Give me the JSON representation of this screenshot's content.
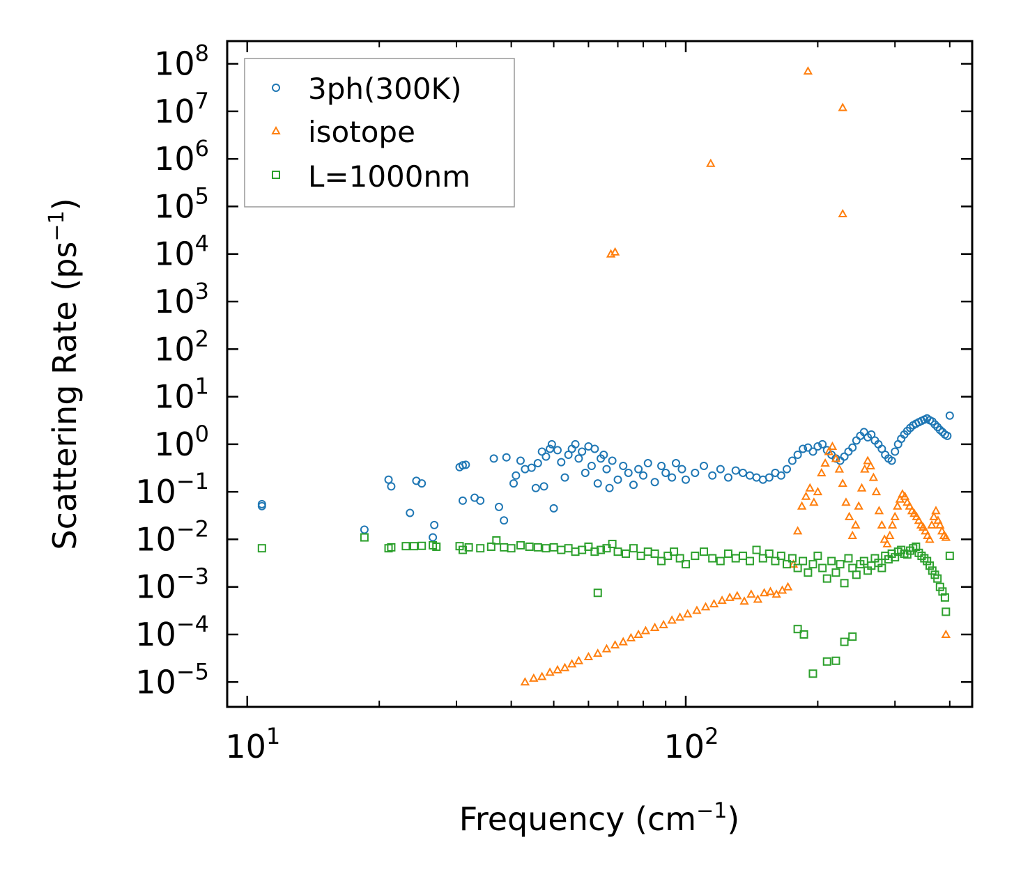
{
  "chart_data": {
    "type": "scatter",
    "title": "",
    "xlabel": "Frequency",
    "xlabel_unit_base": "cm",
    "xlabel_unit_exp": "−1",
    "ylabel": "Scattering Rate",
    "ylabel_unit_base": "ps",
    "ylabel_unit_exp": "−1",
    "xscale": "log",
    "yscale": "log",
    "xlim": [
      9,
      450
    ],
    "ylim": [
      3e-06,
      300000000.0
    ],
    "xticks": [
      {
        "value": 10,
        "base": "10",
        "exp": "1"
      },
      {
        "value": 100,
        "base": "10",
        "exp": "2"
      }
    ],
    "yticks": [
      {
        "value": 1e-05,
        "base": "10",
        "exp": "−5"
      },
      {
        "value": 0.0001,
        "base": "10",
        "exp": "−4"
      },
      {
        "value": 0.001,
        "base": "10",
        "exp": "−3"
      },
      {
        "value": 0.01,
        "base": "10",
        "exp": "−2"
      },
      {
        "value": 0.1,
        "base": "10",
        "exp": "−1"
      },
      {
        "value": 1,
        "base": "10",
        "exp": "0"
      },
      {
        "value": 10,
        "base": "10",
        "exp": "1"
      },
      {
        "value": 100,
        "base": "10",
        "exp": "2"
      },
      {
        "value": 1000,
        "base": "10",
        "exp": "3"
      },
      {
        "value": 10000,
        "base": "10",
        "exp": "4"
      },
      {
        "value": 100000,
        "base": "10",
        "exp": "5"
      },
      {
        "value": 1000000,
        "base": "10",
        "exp": "6"
      },
      {
        "value": 10000000,
        "base": "10",
        "exp": "7"
      },
      {
        "value": 100000000,
        "base": "10",
        "exp": "8"
      }
    ],
    "legend_position": "top-left",
    "series": [
      {
        "name": "3ph(300K)",
        "color": "#1f77b4",
        "marker": "circle",
        "x": [
          10.8,
          10.8,
          18.5,
          21.0,
          21.3,
          23.5,
          24.3,
          25.0,
          26.5,
          26.7,
          30.5,
          31.0,
          31.5,
          31.0,
          33.0,
          34.0,
          36.5,
          37.5,
          38.5,
          39.0,
          40.5,
          41.0,
          42.0,
          43.0,
          44.5,
          45.5,
          46.0,
          47.0,
          47.5,
          48.0,
          49.0,
          49.5,
          50.0,
          51.0,
          52.0,
          53.0,
          54.0,
          55.0,
          56.0,
          57.0,
          58.0,
          59.0,
          60.0,
          61.0,
          62.0,
          63.0,
          64.0,
          65.0,
          66.0,
          67.0,
          68.0,
          70.0,
          72.0,
          74.0,
          76.0,
          78.0,
          80.0,
          82.0,
          85.0,
          88.0,
          90.0,
          93.0,
          95.0,
          98.0,
          100.0,
          105.0,
          110.0,
          115.0,
          120.0,
          125.0,
          130.0,
          135.0,
          140.0,
          145.0,
          150.0,
          155.0,
          160.0,
          165.0,
          170.0,
          175.0,
          180.0,
          185.0,
          190.0,
          195.0,
          200.0,
          205.0,
          210.0,
          215.0,
          220.0,
          225.0,
          230.0,
          235.0,
          240.0,
          245.0,
          250.0,
          255.0,
          260.0,
          265.0,
          270.0,
          275.0,
          280.0,
          285.0,
          290.0,
          295.0,
          300.0,
          305.0,
          310.0,
          315.0,
          320.0,
          325.0,
          330.0,
          335.0,
          340.0,
          345.0,
          350.0,
          355.0,
          360.0,
          365.0,
          370.0,
          375.0,
          380.0,
          385.0,
          390.0,
          395.0,
          400.0
        ],
        "y": [
          0.05,
          0.055,
          0.016,
          0.18,
          0.13,
          0.036,
          0.17,
          0.15,
          0.011,
          0.02,
          0.33,
          0.065,
          0.37,
          0.36,
          0.075,
          0.065,
          0.5,
          0.048,
          0.025,
          0.53,
          0.15,
          0.22,
          0.45,
          0.3,
          0.32,
          0.12,
          0.4,
          0.7,
          0.13,
          0.55,
          0.8,
          1.0,
          0.045,
          0.75,
          0.42,
          0.2,
          0.6,
          0.8,
          1.0,
          0.5,
          0.7,
          0.25,
          0.9,
          0.35,
          0.8,
          0.15,
          0.5,
          0.6,
          0.3,
          0.12,
          0.45,
          0.18,
          0.35,
          0.25,
          0.14,
          0.3,
          0.22,
          0.4,
          0.16,
          0.35,
          0.25,
          0.2,
          0.4,
          0.3,
          0.18,
          0.25,
          0.35,
          0.22,
          0.3,
          0.2,
          0.28,
          0.25,
          0.22,
          0.2,
          0.18,
          0.2,
          0.25,
          0.22,
          0.3,
          0.45,
          0.6,
          0.8,
          0.85,
          0.7,
          0.9,
          1.0,
          0.75,
          0.6,
          0.5,
          0.45,
          0.55,
          0.7,
          0.85,
          1.2,
          1.5,
          1.8,
          1.4,
          1.6,
          1.2,
          1.0,
          0.8,
          0.6,
          0.5,
          0.45,
          0.7,
          1.0,
          1.3,
          1.6,
          1.9,
          2.2,
          2.5,
          2.7,
          2.9,
          3.1,
          3.3,
          3.5,
          3.2,
          3.0,
          2.6,
          2.3,
          2.0,
          1.8,
          1.6,
          1.5,
          4.0
        ]
      },
      {
        "name": "isotope",
        "color": "#ff7f0e",
        "marker": "triangle",
        "x": [
          43.0,
          45.0,
          47.0,
          49.0,
          51.0,
          53.0,
          55.0,
          57.0,
          60.0,
          63.0,
          66.0,
          69.0,
          72.0,
          75.0,
          78.0,
          81.0,
          85.0,
          89.0,
          93.0,
          97.0,
          101.0,
          106.0,
          111.0,
          116.0,
          121.0,
          126.0,
          131.0,
          136.0,
          141.0,
          146.0,
          151.0,
          156.0,
          161.0,
          166.0,
          171.0,
          176.0,
          180.0,
          184.0,
          188.0,
          192.0,
          196.0,
          200.0,
          204.0,
          208.0,
          212.0,
          216.0,
          220.0,
          224.0,
          228.0,
          232.0,
          236.0,
          240.0,
          244.0,
          248.0,
          252.0,
          256.0,
          260.0,
          264.0,
          268.0,
          272.0,
          276.0,
          280.0,
          284.0,
          288.0,
          292.0,
          296.0,
          300.0,
          304.0,
          308.0,
          312.0,
          316.0,
          320.0,
          324.0,
          328.0,
          332.0,
          336.0,
          340.0,
          344.0,
          348.0,
          352.0,
          356.0,
          360.0,
          364.0,
          368.0,
          372.0,
          376.0,
          380.0,
          384.0,
          388.0,
          392.0,
          392.0,
          67.5,
          69.0,
          114.0,
          190.0,
          228.0,
          228.0
        ],
        "y": [
          1e-05,
          1.2e-05,
          1.3e-05,
          1.6e-05,
          1.8e-05,
          2e-05,
          2.4e-05,
          2.8e-05,
          3.4e-05,
          4e-05,
          5e-05,
          6e-05,
          7e-05,
          8.5e-05,
          0.0001,
          0.00012,
          0.00014,
          0.00016,
          0.0002,
          0.00023,
          0.00027,
          0.00032,
          0.00038,
          0.00044,
          0.00052,
          0.0006,
          0.00065,
          0.0005,
          0.0007,
          0.00055,
          0.00075,
          0.0008,
          0.0007,
          0.00085,
          0.001,
          0.003,
          0.015,
          0.05,
          0.08,
          0.12,
          0.06,
          0.1,
          0.25,
          0.4,
          0.7,
          0.9,
          0.5,
          0.3,
          0.15,
          0.06,
          0.03,
          0.012,
          0.02,
          0.05,
          0.12,
          0.3,
          0.45,
          0.35,
          0.2,
          0.1,
          0.04,
          0.02,
          0.01,
          0.008,
          0.012,
          0.02,
          0.03,
          0.05,
          0.07,
          0.09,
          0.08,
          0.06,
          0.05,
          0.04,
          0.035,
          0.03,
          0.025,
          0.02,
          0.018,
          0.015,
          0.012,
          0.01,
          0.02,
          0.03,
          0.04,
          0.025,
          0.02,
          0.015,
          0.012,
          0.011,
          0.0001,
          10000.0,
          11000.0,
          800000.0,
          70000000.0,
          12000000.0,
          70000.0
        ]
      },
      {
        "name": "L=1000nm",
        "color": "#2ca02c",
        "marker": "square",
        "x": [
          10.8,
          18.5,
          21.0,
          21.3,
          23.0,
          24.0,
          25.0,
          26.5,
          27.0,
          30.5,
          31.0,
          32.0,
          34.0,
          36.0,
          37.0,
          38.5,
          40.0,
          42.0,
          44.0,
          46.0,
          48.0,
          50.0,
          52.0,
          54.0,
          56.0,
          58.0,
          60.0,
          62.0,
          64.0,
          66.0,
          68.0,
          70.0,
          73.0,
          76.0,
          79.0,
          82.0,
          85.0,
          88.0,
          91.0,
          94.0,
          97.0,
          100.0,
          105.0,
          110.0,
          115.0,
          120.0,
          125.0,
          130.0,
          135.0,
          140.0,
          145.0,
          150.0,
          155.0,
          160.0,
          165.0,
          170.0,
          175.0,
          180.0,
          185.0,
          190.0,
          195.0,
          200.0,
          205.0,
          210.0,
          215.0,
          220.0,
          225.0,
          230.0,
          235.0,
          240.0,
          245.0,
          250.0,
          255.0,
          260.0,
          265.0,
          270.0,
          275.0,
          280.0,
          285.0,
          290.0,
          295.0,
          300.0,
          305.0,
          310.0,
          315.0,
          320.0,
          325.0,
          330.0,
          335.0,
          340.0,
          345.0,
          350.0,
          355.0,
          360.0,
          365.0,
          370.0,
          375.0,
          380.0,
          385.0,
          390.0,
          392.0,
          400.0,
          63.0,
          180.0,
          186.0,
          210.0,
          220.0,
          195.0,
          240.0,
          230.0
        ],
        "y": [
          0.0065,
          0.011,
          0.0065,
          0.0068,
          0.0072,
          0.0072,
          0.0073,
          0.0075,
          0.007,
          0.0072,
          0.006,
          0.0068,
          0.0065,
          0.007,
          0.0095,
          0.0068,
          0.0065,
          0.0075,
          0.007,
          0.0068,
          0.0065,
          0.0068,
          0.006,
          0.0065,
          0.0055,
          0.006,
          0.007,
          0.0055,
          0.006,
          0.0065,
          0.008,
          0.0055,
          0.005,
          0.0065,
          0.0045,
          0.0055,
          0.005,
          0.0035,
          0.0045,
          0.0055,
          0.004,
          0.003,
          0.0045,
          0.0055,
          0.004,
          0.0035,
          0.005,
          0.004,
          0.0045,
          0.0035,
          0.006,
          0.004,
          0.005,
          0.0035,
          0.0045,
          0.003,
          0.004,
          0.0025,
          0.0035,
          0.002,
          0.003,
          0.0045,
          0.0025,
          0.0015,
          0.0035,
          0.002,
          0.003,
          0.0012,
          0.004,
          0.0025,
          0.0018,
          0.003,
          0.0035,
          0.0022,
          0.0028,
          0.004,
          0.0032,
          0.0025,
          0.0045,
          0.0038,
          0.005,
          0.0042,
          0.0055,
          0.006,
          0.005,
          0.0048,
          0.0058,
          0.0065,
          0.007,
          0.0052,
          0.0045,
          0.004,
          0.0035,
          0.0028,
          0.0022,
          0.0018,
          0.0015,
          0.001,
          0.0008,
          0.0006,
          0.0003,
          0.0045,
          0.00075,
          0.00013,
          0.0001,
          2.7e-05,
          2.8e-05,
          1.5e-05,
          9e-05,
          7e-05
        ]
      }
    ]
  }
}
